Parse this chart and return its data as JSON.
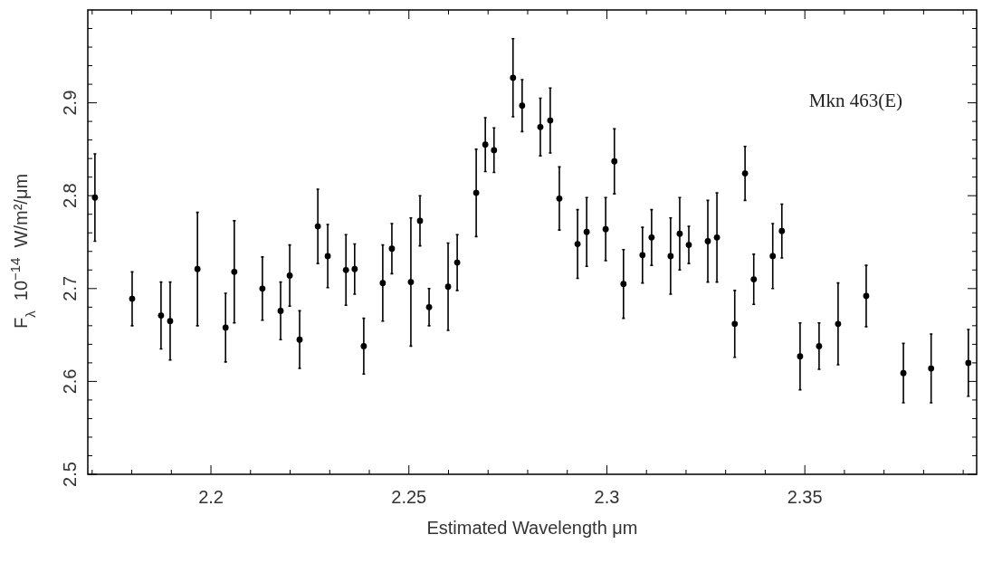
{
  "chart_data": {
    "type": "scatter",
    "xlabel": "Estimated Wavelength  μm",
    "ylabel": "F$_{λ}$  10$^{−14}$  W/m²/μm",
    "annotations": [
      "Mkn 463(E)"
    ],
    "marker": "circle",
    "grid": false,
    "xlim": [
      2.1689,
      2.3934
    ],
    "ylim": [
      2.5,
      3.0
    ],
    "xticks": [
      {
        "value": 2.17,
        "label": null
      },
      {
        "value": 2.18,
        "label": null
      },
      {
        "value": 2.19,
        "label": null
      },
      2.2,
      {
        "value": 2.21,
        "label": null
      },
      {
        "value": 2.22,
        "label": null
      },
      {
        "value": 2.23,
        "label": null
      },
      {
        "value": 2.24,
        "label": null
      },
      2.25,
      {
        "value": 2.26,
        "label": null
      },
      {
        "value": 2.27,
        "label": null
      },
      {
        "value": 2.28,
        "label": null
      },
      {
        "value": 2.29,
        "label": null
      },
      2.3,
      {
        "value": 2.31,
        "label": null
      },
      {
        "value": 2.32,
        "label": null
      },
      {
        "value": 2.33,
        "label": null
      },
      {
        "value": 2.34,
        "label": null
      },
      2.35,
      {
        "value": 2.36,
        "label": null
      },
      {
        "value": 2.37,
        "label": null
      },
      {
        "value": 2.38,
        "label": null
      },
      {
        "value": 2.39,
        "label": null
      }
    ],
    "yticks": [
      2.5,
      {
        "value": 2.52,
        "label": null
      },
      {
        "value": 2.54,
        "label": null
      },
      {
        "value": 2.56,
        "label": null
      },
      {
        "value": 2.58,
        "label": null
      },
      2.6,
      {
        "value": 2.62,
        "label": null
      },
      {
        "value": 2.64,
        "label": null
      },
      {
        "value": 2.66,
        "label": null
      },
      {
        "value": 2.68,
        "label": null
      },
      2.7,
      {
        "value": 2.72,
        "label": null
      },
      {
        "value": 2.74,
        "label": null
      },
      {
        "value": 2.76,
        "label": null
      },
      {
        "value": 2.78,
        "label": null
      },
      2.8,
      {
        "value": 2.82,
        "label": null
      },
      {
        "value": 2.84,
        "label": null
      },
      {
        "value": 2.86,
        "label": null
      },
      {
        "value": 2.88,
        "label": null
      },
      2.9,
      {
        "value": 2.92,
        "label": null
      },
      {
        "value": 2.94,
        "label": null
      },
      {
        "value": 2.96,
        "label": null
      },
      {
        "value": 2.98,
        "label": null
      }
    ],
    "series": [
      {
        "color": "#000000",
        "x": [
          2.1707,
          2.1801,
          2.1874,
          2.1897,
          2.1966,
          2.2037,
          2.2059,
          2.213,
          2.2176,
          2.2199,
          2.2224,
          2.227,
          2.2295,
          2.2341,
          2.2363,
          2.2386,
          2.2434,
          2.2457,
          2.2505,
          2.2528,
          2.2551,
          2.2599,
          2.2622,
          2.267,
          2.2693,
          2.2715,
          2.2763,
          2.2786,
          2.2832,
          2.2857,
          2.288,
          2.2926,
          2.2949,
          2.2997,
          2.3019,
          2.3042,
          2.309,
          2.3113,
          2.3161,
          2.3184,
          2.3207,
          2.3255,
          2.3278,
          2.3323,
          2.3349,
          2.3371,
          2.3419,
          2.3442,
          2.3488,
          2.3536,
          2.3584,
          2.3655,
          2.3749,
          2.3819,
          2.3913
        ],
        "values": [
          2.798,
          2.689,
          2.671,
          2.665,
          2.721,
          2.658,
          2.718,
          2.7,
          2.676,
          2.714,
          2.645,
          2.767,
          2.735,
          2.72,
          2.721,
          2.638,
          2.706,
          2.743,
          2.707,
          2.773,
          2.68,
          2.702,
          2.728,
          2.803,
          2.855,
          2.849,
          2.927,
          2.897,
          2.874,
          2.881,
          2.797,
          2.748,
          2.761,
          2.764,
          2.837,
          2.705,
          2.736,
          2.755,
          2.735,
          2.759,
          2.747,
          2.751,
          2.755,
          2.662,
          2.824,
          2.71,
          2.735,
          2.762,
          2.627,
          2.638,
          2.662,
          2.692,
          2.609,
          2.614,
          2.62
        ],
        "errors": [
          0.047,
          0.029,
          0.036,
          0.042,
          0.061,
          0.037,
          0.055,
          0.034,
          0.031,
          0.033,
          0.031,
          0.04,
          0.034,
          0.038,
          0.027,
          0.03,
          0.041,
          0.027,
          0.069,
          0.027,
          0.02,
          0.047,
          0.03,
          0.047,
          0.029,
          0.024,
          0.042,
          0.028,
          0.031,
          0.035,
          0.034,
          0.037,
          0.037,
          0.034,
          0.035,
          0.037,
          0.03,
          0.03,
          0.041,
          0.039,
          0.02,
          0.044,
          0.048,
          0.036,
          0.029,
          0.027,
          0.035,
          0.029,
          0.036,
          0.025,
          0.044,
          0.033,
          0.032,
          0.037,
          0.036
        ]
      }
    ]
  }
}
